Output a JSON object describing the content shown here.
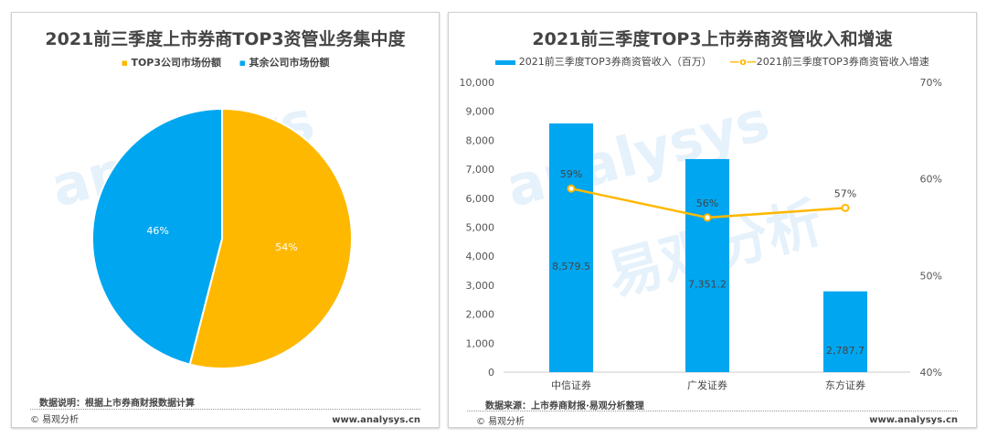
{
  "left_panel": {
    "note": "数据说明：根据上市券商财报数据计算",
    "copyright": "© 易观分析",
    "site": "www.analysys.cn"
  },
  "right_panel": {
    "note": "数据来源：上市券商财报·易观分析整理",
    "copyright": "© 易观分析",
    "site": "www.analysys.cn"
  },
  "watermark": {
    "brand": "analysys",
    "cn": "易观分析"
  },
  "chart_data": [
    {
      "type": "pie",
      "title": "2021前三季度上市券商TOP3资管业务集中度",
      "legend": [
        "TOP3公司市场份额",
        "其余公司市场份额"
      ],
      "values": [
        54,
        46
      ],
      "labels": [
        "54%",
        "46%"
      ],
      "colors": [
        "#FFB800",
        "#00A6F0"
      ],
      "legend_position": "top"
    },
    {
      "type": "bar+line",
      "title": "2021前三季度TOP3上市券商资管收入和增速",
      "categories": [
        "中信证券",
        "广发证券",
        "东方证券"
      ],
      "series": [
        {
          "name": "2021前三季度TOP3券商资管收入（百万）",
          "type": "bar",
          "values": [
            8579.5,
            7351.2,
            2787.7
          ],
          "labels": [
            "8,579.5",
            "7,351.2",
            "2,787.7"
          ],
          "color": "#00A6F0"
        },
        {
          "name": "2021前三季度TOP3券商资管收入增速",
          "type": "line",
          "values": [
            59,
            56,
            57
          ],
          "labels": [
            "59%",
            "56%",
            "57%"
          ],
          "color": "#FFB800"
        }
      ],
      "y_left": {
        "range": [
          0,
          10000
        ],
        "ticks": [
          "0",
          "1,000",
          "2,000",
          "3,000",
          "4,000",
          "5,000",
          "6,000",
          "7,000",
          "8,000",
          "9,000",
          "10,000"
        ]
      },
      "y_right": {
        "range": [
          40,
          70
        ],
        "ticks": [
          "40%",
          "50%",
          "60%",
          "70%"
        ]
      },
      "legend_position": "top"
    }
  ]
}
